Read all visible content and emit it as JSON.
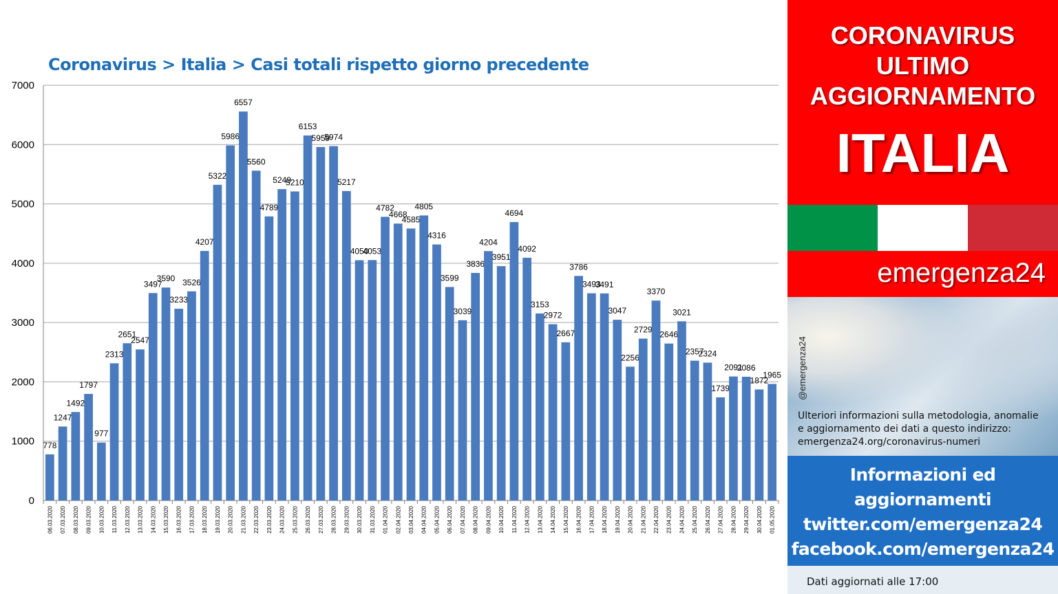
{
  "chart_data": {
    "type": "bar",
    "title": "Coronavirus > Italia > Casi totali rispetto giorno precedente",
    "xlabel": "",
    "ylabel": "",
    "ylim": [
      0,
      7000
    ],
    "yticks": [
      0,
      1000,
      2000,
      3000,
      4000,
      5000,
      6000,
      7000
    ],
    "grid": true,
    "legend": "none",
    "bar_color": "#4a7bbf",
    "categories": [
      "06.03.2020",
      "07.03.2020",
      "08.03.2020",
      "09.03.2020",
      "10.03.2020",
      "11.03.2020",
      "12.03.2020",
      "13.03.2020",
      "14.03.2020",
      "15.03.2020",
      "16.03.2020",
      "17.03.2020",
      "18.03.2020",
      "19.03.2020",
      "20.03.2020",
      "21.03.2020",
      "22.03.2020",
      "23.03.2020",
      "24.03.2020",
      "25.03.2020",
      "26.03.2020",
      "27.03.2020",
      "28.03.2020",
      "29.03.2020",
      "30.03.2020",
      "31.03.2020",
      "01.04.2020",
      "02.04.2020",
      "03.04.2020",
      "04.04.2020",
      "05.04.2020",
      "06.04.2020",
      "07.04.2020",
      "08.04.2020",
      "09.04.2020",
      "10.04.2020",
      "11.04.2020",
      "12.04.2020",
      "13.04.2020",
      "14.04.2020",
      "15.04.2020",
      "16.04.2020",
      "17.04.2020",
      "18.04.2020",
      "19.04.2020",
      "20.04.2020",
      "21.04.2020",
      "22.04.2020",
      "23.04.2020",
      "24.04.2020",
      "25.04.2020",
      "26.04.2020",
      "27.04.2020",
      "28.04.2020",
      "29.04.2020",
      "30.04.2020",
      "01.05.2020"
    ],
    "values": [
      778,
      1247,
      1492,
      1797,
      977,
      2313,
      2651,
      2547,
      3497,
      3590,
      3233,
      3526,
      4207,
      5322,
      5986,
      6557,
      5560,
      4789,
      5249,
      5210,
      6153,
      5959,
      5974,
      5217,
      4050,
      4053,
      4782,
      4668,
      4585,
      4805,
      4316,
      3599,
      3039,
      3836,
      4204,
      3951,
      4694,
      4092,
      3153,
      2972,
      2667,
      3786,
      3493,
      3491,
      3047,
      2256,
      2729,
      3370,
      2646,
      3021,
      2357,
      2324,
      1739,
      2091,
      2086,
      1872,
      1965
    ]
  },
  "sidebar": {
    "headline_lines": [
      "CORONAVIRUS",
      "ULTIMO",
      "AGGIORNAMENTO"
    ],
    "country": "ITALIA",
    "flag_colors": [
      "#009246",
      "#ffffff",
      "#ce2b37"
    ],
    "brand": "emergenza24",
    "handle": "@emergenza24",
    "info_lines": [
      "Ulteriori informazioni sulla metodologia, anomalie",
      "e aggiornamento dei dati a questo indirizzo:",
      "emergenza24.org/coronavirus-numeri"
    ],
    "contact_lines": [
      "Informazioni ed",
      "aggiornamenti",
      "twitter.com/emergenza24",
      "facebook.com/emergenza24"
    ],
    "footer": "Dati aggiornati alle 17:00"
  }
}
